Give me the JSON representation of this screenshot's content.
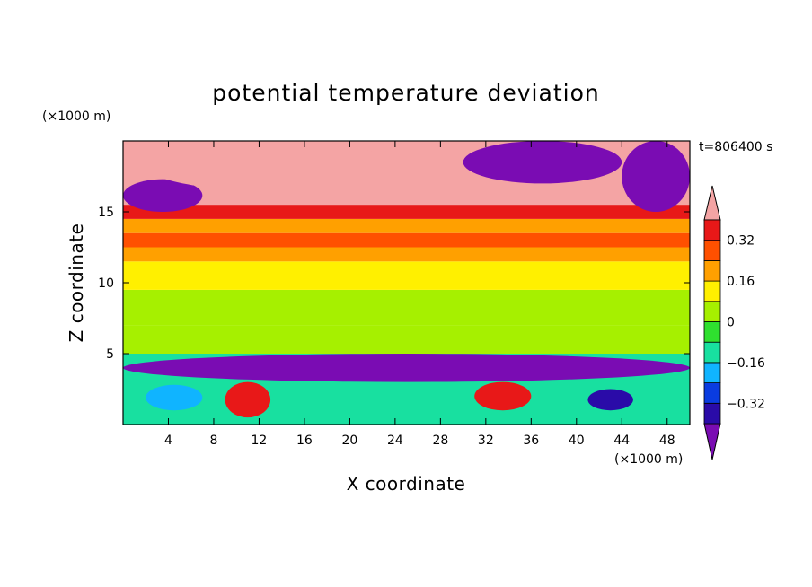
{
  "chart_data": {
    "type": "heatmap",
    "title": "potential temperature deviation",
    "xlabel": "X coordinate",
    "ylabel": "Z coordinate",
    "x_unit": "(×1000 m)",
    "y_unit": "(×1000 m)",
    "time_label": "t=806400 s",
    "xlim": [
      0,
      50
    ],
    "ylim": [
      0,
      20
    ],
    "x_ticks": [
      "4",
      "8",
      "12",
      "16",
      "20",
      "24",
      "28",
      "32",
      "36",
      "40",
      "44",
      "48"
    ],
    "y_ticks": [
      "5",
      "10",
      "15"
    ],
    "x_tick_values": [
      4,
      8,
      12,
      16,
      20,
      24,
      28,
      32,
      36,
      40,
      44,
      48
    ],
    "y_tick_values": [
      5,
      10,
      15
    ],
    "colorbar": {
      "levels": [
        -0.4,
        -0.32,
        -0.24,
        -0.16,
        -0.08,
        0,
        0.08,
        0.16,
        0.24,
        0.32,
        0.4
      ],
      "labels": [
        "0.32",
        "0.16",
        "0",
        "−0.16",
        "−0.32"
      ],
      "label_values": [
        0.32,
        0.16,
        0,
        -0.16,
        -0.32
      ],
      "colors": [
        "#7a0cb3",
        "#2a0ba8",
        "#0a3ce0",
        "#10b4ff",
        "#18e0a0",
        "#2fe02f",
        "#a6f000",
        "#fff000",
        "#ffa000",
        "#ff5000",
        "#e81818",
        "#f4a4a4"
      ],
      "extend": "both"
    },
    "bands": [
      {
        "z0": 0,
        "z1": 5,
        "value": -0.12
      },
      {
        "z0": 5,
        "z1": 7,
        "value": 0.05
      },
      {
        "z0": 7,
        "z1": 9.5,
        "value": 0.0
      },
      {
        "z0": 9.5,
        "z1": 11.5,
        "value": 0.1
      },
      {
        "z0": 11.5,
        "z1": 12.5,
        "value": 0.2
      },
      {
        "z0": 12.5,
        "z1": 13.5,
        "value": 0.3
      },
      {
        "z0": 13.5,
        "z1": 14.5,
        "value": 0.22
      },
      {
        "z0": 14.5,
        "z1": 15.5,
        "value": 0.34
      },
      {
        "z0": 15.5,
        "z1": 20,
        "value": 0.45
      }
    ],
    "anomalies": [
      {
        "x": 0,
        "z": 15,
        "w": 7,
        "h": 2.3,
        "value": -0.45
      },
      {
        "x": 44,
        "z": 15,
        "w": 6,
        "h": 5,
        "value": -0.45
      },
      {
        "x": 30,
        "z": 17,
        "w": 14,
        "h": 3,
        "value": -0.45
      },
      {
        "x": 2,
        "z": 16.5,
        "w": 22,
        "h": 3.5,
        "value": 0.45
      },
      {
        "x": 0,
        "z": 3,
        "w": 50,
        "h": 2,
        "value": -0.45
      },
      {
        "x": 9,
        "z": 0.5,
        "w": 4,
        "h": 2.5,
        "value": 0.35
      },
      {
        "x": 31,
        "z": 1,
        "w": 5,
        "h": 2,
        "value": 0.35
      },
      {
        "x": 41,
        "z": 1,
        "w": 4,
        "h": 1.5,
        "value": -0.33
      },
      {
        "x": 2,
        "z": 1,
        "w": 5,
        "h": 1.8,
        "value": -0.2
      }
    ],
    "grid": false
  }
}
